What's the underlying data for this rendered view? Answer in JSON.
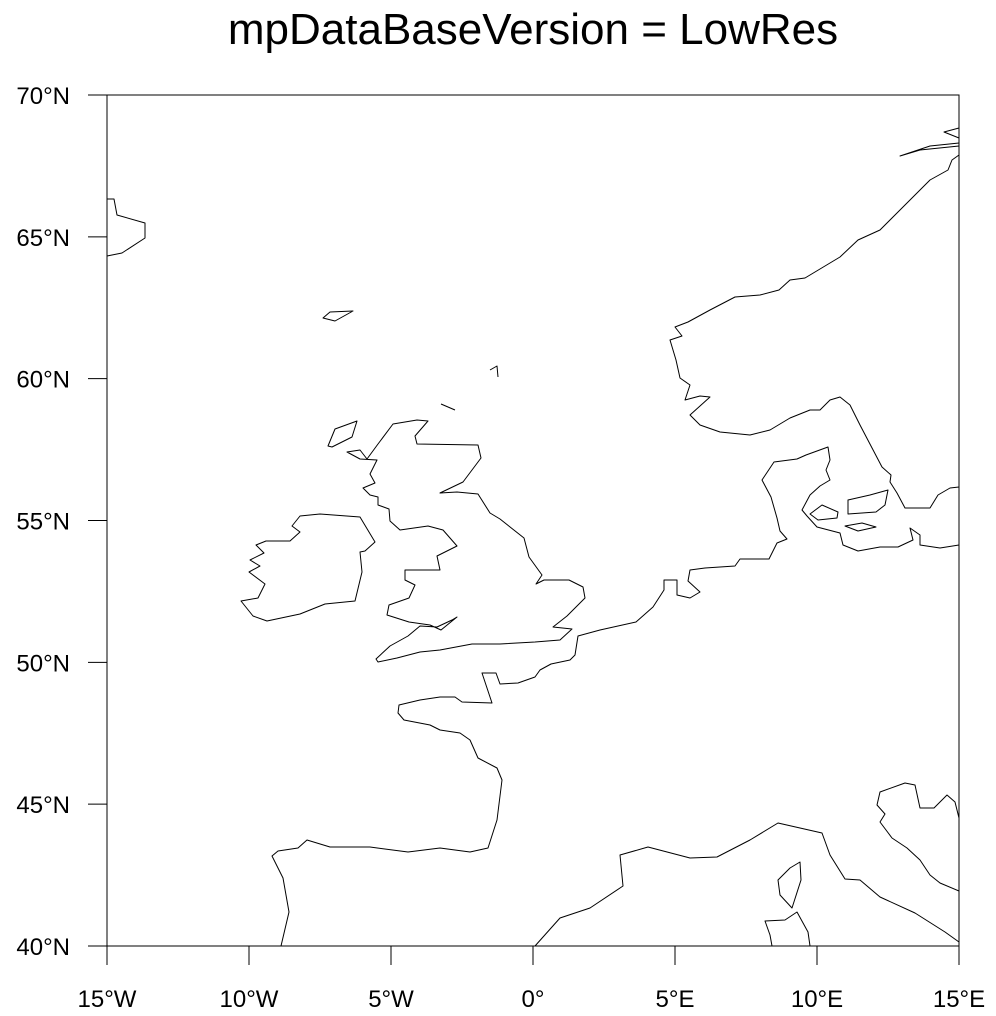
{
  "title": "mpDataBaseVersion = LowRes",
  "xaxis": {
    "lim": [
      -15,
      15
    ],
    "ticks": [
      {
        "value": -15,
        "label": "15°W"
      },
      {
        "value": -10,
        "label": "10°W"
      },
      {
        "value": -5,
        "label": "5°W"
      },
      {
        "value": 0,
        "label": "0°"
      },
      {
        "value": 5,
        "label": "5°E"
      },
      {
        "value": 10,
        "label": "10°E"
      },
      {
        "value": 15,
        "label": "15°E"
      }
    ]
  },
  "yaxis": {
    "lim": [
      40,
      70
    ],
    "ticks": [
      {
        "value": 40,
        "label": "40°N"
      },
      {
        "value": 45,
        "label": "45°N"
      },
      {
        "value": 50,
        "label": "50°N"
      },
      {
        "value": 55,
        "label": "55°N"
      },
      {
        "value": 60,
        "label": "60°N"
      },
      {
        "value": 65,
        "label": "65°N"
      },
      {
        "value": 70,
        "label": "70°N"
      }
    ]
  }
}
